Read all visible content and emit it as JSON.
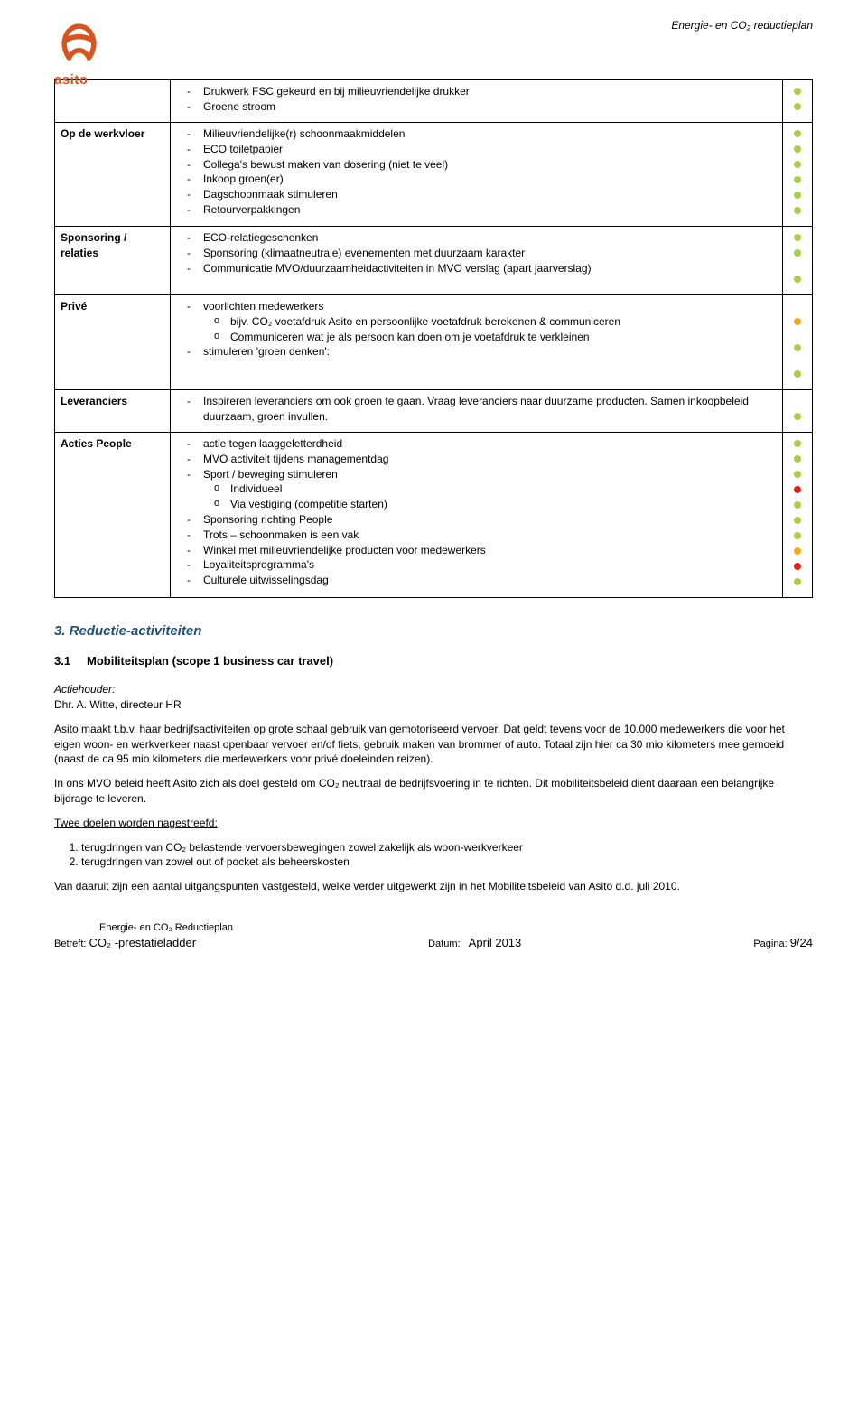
{
  "brand": "asito",
  "doc_header": "Energie- en CO₂ reductieplan",
  "dot_colors": {
    "green": "#a8cf45",
    "red": "#e2231a",
    "orange": "#f6a81c"
  },
  "table": [
    {
      "label": "",
      "items": [
        {
          "t": "dash",
          "text": "Drukwerk FSC gekeurd en bij milieuvriendelijke drukker",
          "dot": "green"
        },
        {
          "t": "dash",
          "text": "Groene stroom",
          "dot": "green"
        }
      ]
    },
    {
      "label": "Op de werkvloer",
      "items": [
        {
          "t": "dash",
          "text": "Milieuvriendelijke(r) schoonmaakmiddelen",
          "dot": "green"
        },
        {
          "t": "dash",
          "text": "ECO toiletpapier",
          "dot": "green"
        },
        {
          "t": "dash",
          "text": "Collega's bewust maken van dosering (niet te veel)",
          "dot": "green"
        },
        {
          "t": "dash",
          "text": "Inkoop groen(er)",
          "dot": "green"
        },
        {
          "t": "dash",
          "text": "Dagschoonmaak stimuleren",
          "dot": "green"
        },
        {
          "t": "dash",
          "text": "Retourverpakkingen",
          "dot": "green"
        }
      ]
    },
    {
      "label": "Sponsoring / relaties",
      "items": [
        {
          "t": "dash",
          "text": "ECO-relatiegeschenken",
          "dot": "green"
        },
        {
          "t": "dash",
          "text": "Sponsoring (klimaatneutrale) evenementen met duurzaam karakter",
          "dot": "green"
        },
        {
          "t": "dash",
          "text": "Communicatie MVO/duurzaamheidactiviteiten in MVO verslag (apart jaarverslag)",
          "dot": "green",
          "dot_offset": 1
        }
      ]
    },
    {
      "label": "Privé",
      "items": [
        {
          "t": "dash",
          "text": "voorlichten medewerkers"
        },
        {
          "t": "circ",
          "text": "bijv. CO₂ voetafdruk Asito en persoonlijke voetafdruk berekenen & communiceren",
          "dot": "orange"
        },
        {
          "t": "circ",
          "text": "Communiceren wat je als persoon kan doen om je voetafdruk te verkleinen",
          "dot": "green",
          "dot_offset": 1
        },
        {
          "t": "dash",
          "text": "stimuleren 'groen denken':",
          "dot": "green",
          "dot_offset": 1
        }
      ]
    },
    {
      "label": "Leveranciers",
      "items": [
        {
          "t": "dash",
          "text": "Inspireren leveranciers om ook groen te gaan. Vraag leveranciers naar duurzame producten. Samen inkoopbeleid duurzaam, groen invullen.",
          "dot": "green",
          "dot_offset": 1
        }
      ]
    },
    {
      "label": "Acties People",
      "items": [
        {
          "t": "dash",
          "text": "actie tegen laaggeletterdheid",
          "dot": "green"
        },
        {
          "t": "dash",
          "text": "MVO activiteit tijdens managementdag",
          "dot": "green"
        },
        {
          "t": "dash",
          "text": "Sport / beweging stimuleren",
          "dot": "green"
        },
        {
          "t": "circ",
          "text": "Individueel",
          "dot": "red"
        },
        {
          "t": "circ",
          "text": "Via vestiging (competitie starten)",
          "dot": "green"
        },
        {
          "t": "dash",
          "text": "Sponsoring richting People",
          "dot": "green"
        },
        {
          "t": "dash",
          "text": "Trots – schoonmaken is een vak",
          "dot": "green"
        },
        {
          "t": "dash",
          "text": "Winkel met milieuvriendelijke producten voor medewerkers",
          "dot": "orange"
        },
        {
          "t": "dash",
          "text": "Loyaliteitsprogramma's",
          "dot": "red"
        },
        {
          "t": "dash",
          "text": "Culturele uitwisselingsdag",
          "dot": "green"
        }
      ]
    }
  ],
  "section3": {
    "title": "3. Reductie-activiteiten",
    "sub_num": "3.1",
    "sub_title": "Mobiliteitsplan (scope 1 business car travel)",
    "actiehouder_label": "Actiehouder:",
    "actiehouder_name": "Dhr. A. Witte, directeur HR",
    "p1": "Asito maakt t.b.v. haar bedrijfsactiviteiten op grote schaal gebruik van gemotoriseerd vervoer. Dat geldt tevens voor de 10.000 medewerkers die voor het eigen woon- en werkverkeer naast openbaar vervoer en/of fiets, gebruik maken van brommer of auto. Totaal zijn hier ca 30 mio kilometers mee gemoeid (naast de ca 95 mio kilometers die medewerkers voor privé doeleinden reizen).",
    "p2": "In ons MVO beleid heeft Asito zich als doel gesteld om CO₂ neutraal de bedrijfsvoering in te richten. Dit mobiliteitsbeleid dient daaraan een belangrijke bijdrage te leveren.",
    "goals_intro": "Twee doelen worden nagestreefd:",
    "goal1": "terugdringen van CO₂ belastende vervoersbewegingen zowel zakelijk als woon-werkverkeer",
    "goal2": "terugdringen van zowel out of pocket als beheerskosten",
    "p3": "Van daaruit zijn een aantal uitgangspunten vastgesteld, welke verder uitgewerkt zijn in het Mobiliteitsbeleid van Asito d.d. juli 2010."
  },
  "footer": {
    "line1": "Energie- en CO₂ Reductieplan",
    "betreft_label": "Betreft:",
    "betreft_value": "CO₂ -prestatieladder",
    "datum_label": "Datum:",
    "datum_value": "April 2013",
    "pagina_label": "Pagina:",
    "pagina_value": "9/24"
  }
}
